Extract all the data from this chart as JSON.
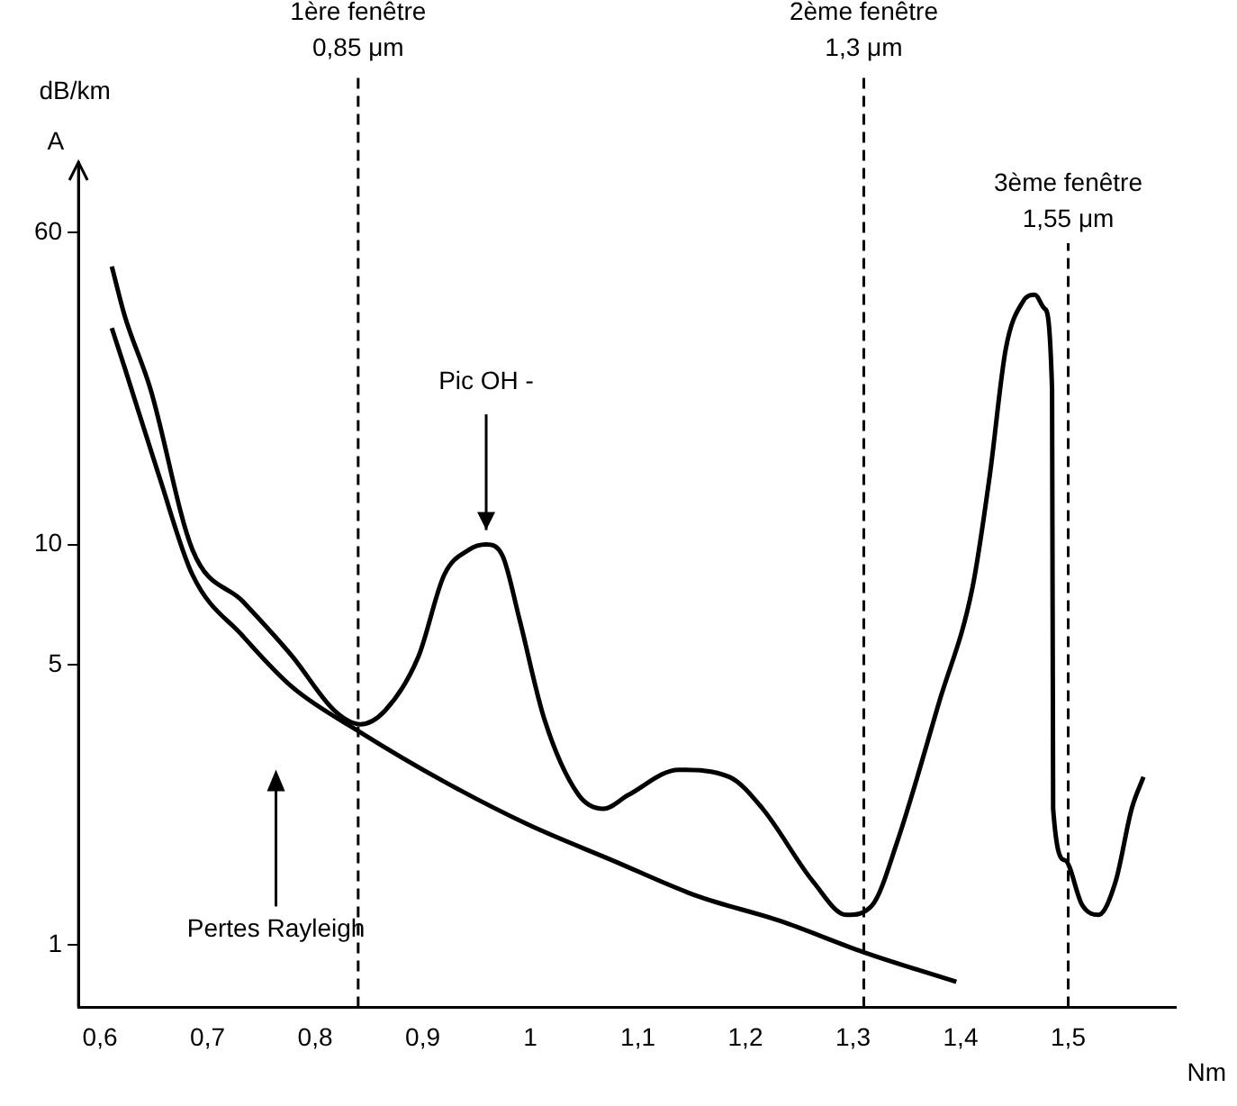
{
  "chart_data": {
    "type": "line",
    "xlabel": "Nm",
    "ylabel": "dB/km",
    "x": [
      0.611,
      0.623,
      0.647,
      0.686,
      0.733,
      0.779,
      0.818,
      0.842,
      0.865,
      0.896,
      0.92,
      0.943,
      0.959,
      0.974,
      0.99,
      1.013,
      1.045,
      1.068,
      1.091,
      1.138,
      1.185,
      1.216,
      1.263,
      1.294,
      1.318,
      1.341,
      1.38,
      1.411,
      1.427,
      1.442,
      1.458,
      1.469,
      1.478,
      1.485,
      1.486,
      1.497,
      1.513,
      1.528,
      1.544,
      1.559,
      1.57
    ],
    "series": [
      {
        "color": "#000000",
        "values": [
          49.4,
          37.2,
          24.4,
          9.7,
          7.2,
          5.25,
          3.85,
          3.56,
          3.85,
          5.25,
          8.4,
          9.7,
          10,
          9.4,
          6.5,
          3.67,
          2.37,
          2.19,
          2.37,
          2.74,
          2.63,
          2.19,
          1.44,
          1.19,
          1.26,
          1.81,
          4.04,
          7.8,
          14.8,
          30.8,
          40.4,
          42,
          38.8,
          24.4,
          2.19,
          1.63,
          1.26,
          1.19,
          1.44,
          2.19,
          2.63
        ]
      },
      {
        "color": "#000000",
        "x": [
          0.611,
          0.623,
          0.655,
          0.686,
          0.733,
          0.779,
          0.842,
          0.92,
          0.998,
          1.076,
          1.154,
          1.232,
          1.31,
          1.396
        ],
        "values": [
          34.7,
          27.6,
          14.8,
          8.4,
          5.9,
          4.4,
          3.4,
          2.56,
          2.0,
          1.63,
          1.33,
          1.15,
          0.96,
          0.81
        ]
      }
    ],
    "log": "y",
    "xlim": [
      0.58,
      1.6
    ],
    "ylim": [
      0.7,
      90
    ],
    "xticks": [
      {
        "value": 0.6,
        "label": "0,6"
      },
      {
        "value": 0.7,
        "label": "0,7"
      },
      {
        "value": 0.8,
        "label": "0,8"
      },
      {
        "value": 0.9,
        "label": "0,9"
      },
      {
        "value": 1,
        "label": "1"
      },
      {
        "value": 1.1,
        "label": "1,1"
      },
      {
        "value": 1.2,
        "label": "1,2"
      },
      {
        "value": 1.3,
        "label": "1,3"
      },
      {
        "value": 1.4,
        "label": "1,4"
      },
      {
        "value": 1.5,
        "label": "1,5"
      }
    ],
    "yticks": [
      1,
      5,
      10,
      60
    ],
    "ref_lines": [
      {
        "axis": "x",
        "value": 0.84,
        "label": "1ère fenêtre\n0,85 μm",
        "line_style": "dashed"
      },
      {
        "axis": "x",
        "value": 1.31,
        "label": "2ème fenêtre\n1,3 μm",
        "line_style": "dashed"
      },
      {
        "axis": "x",
        "value": 1.5,
        "label": "3ème fenêtre\n1,55 μm",
        "line_style": "dashed"
      }
    ],
    "annotations": [
      "A",
      {
        "text": "Pic OH -",
        "x": 0.959,
        "y": 10
      },
      "Pertes Rayleigh"
    ],
    "grid": false,
    "legend": false,
    "marker": "none",
    "line_style": "solid"
  }
}
